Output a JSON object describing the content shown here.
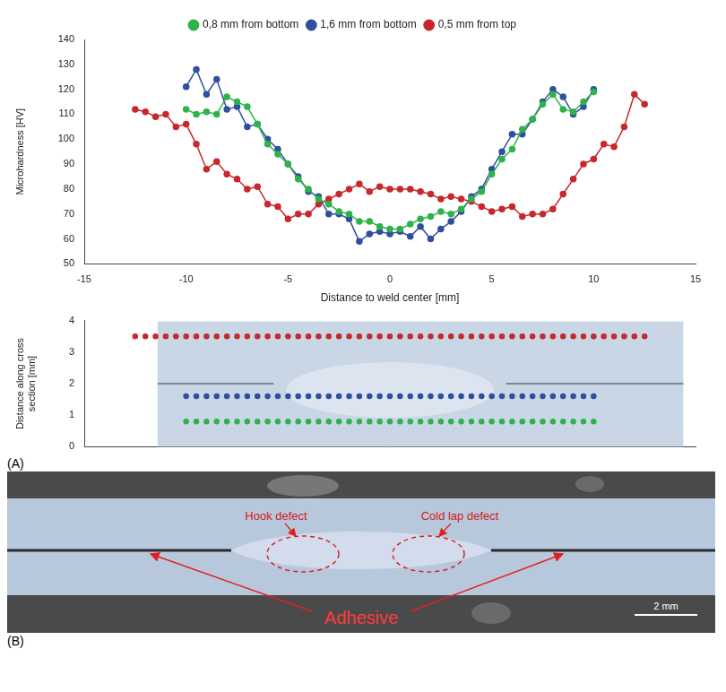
{
  "chart_data": [
    {
      "type": "line",
      "x_label": "Distance to weld center [mm]",
      "y_label": "Microhardness [HV]",
      "xlim": [
        -15,
        15
      ],
      "xticks": [
        -15,
        -10,
        -5,
        0,
        5,
        10,
        15
      ],
      "ylim": [
        50,
        140
      ],
      "yticks": [
        50,
        60,
        70,
        80,
        90,
        100,
        110,
        120,
        130,
        140
      ],
      "grid": false,
      "legend": "top",
      "series": [
        {
          "name": "0,8 mm from bottom",
          "color": "#2db34a",
          "marker": "circle",
          "line_style": "solid",
          "x": [
            -10,
            -9.5,
            -9,
            -8.5,
            -8,
            -7.5,
            -7,
            -6.5,
            -6,
            -5.5,
            -5,
            -4.5,
            -4,
            -3.5,
            -3,
            -2.5,
            -2,
            -1.5,
            -1,
            -0.5,
            0,
            0.5,
            1,
            1.5,
            2,
            2.5,
            3,
            3.5,
            4,
            4.5,
            5,
            5.5,
            6,
            6.5,
            7,
            7.5,
            8,
            8.5,
            9,
            9.5,
            10
          ],
          "values": [
            112,
            110,
            111,
            110,
            117,
            115,
            113,
            106,
            98,
            94,
            90,
            84,
            80,
            76,
            74,
            71,
            70,
            67,
            67,
            65,
            64,
            64,
            66,
            68,
            69,
            71,
            70,
            72,
            76,
            79,
            86,
            92,
            96,
            104,
            108,
            114,
            118,
            112,
            111,
            115,
            119
          ]
        },
        {
          "name": "1,6 mm from bottom",
          "color": "#2f4f9f",
          "marker": "circle",
          "line_style": "solid",
          "x": [
            -10,
            -9.5,
            -9,
            -8.5,
            -8,
            -7.5,
            -7,
            -6.5,
            -6,
            -5.5,
            -5,
            -4.5,
            -4,
            -3.5,
            -3,
            -2.5,
            -2,
            -1.5,
            -1,
            -0.5,
            0,
            0.5,
            1,
            1.5,
            2,
            2.5,
            3,
            3.5,
            4,
            4.5,
            5,
            5.5,
            6,
            6.5,
            7,
            7.5,
            8,
            8.5,
            9,
            9.5,
            10
          ],
          "values": [
            121,
            128,
            118,
            124,
            112,
            113,
            105,
            106,
            100,
            96,
            90,
            85,
            79,
            77,
            70,
            70,
            68,
            59,
            62,
            63,
            62,
            63,
            61,
            65,
            60,
            64,
            67,
            71,
            77,
            80,
            88,
            95,
            102,
            102,
            108,
            115,
            120,
            117,
            110,
            113,
            120
          ]
        },
        {
          "name": "0,5 mm from top",
          "color": "#c8282d",
          "marker": "circle",
          "line_style": "solid",
          "x": [
            -12.5,
            -12,
            -11.5,
            -11,
            -10.5,
            -10,
            -9.5,
            -9,
            -8.5,
            -8,
            -7.5,
            -7,
            -6.5,
            -6,
            -5.5,
            -5,
            -4.5,
            -4,
            -3.5,
            -3,
            -2.5,
            -2,
            -1.5,
            -1,
            -0.5,
            0,
            0.5,
            1,
            1.5,
            2,
            2.5,
            3,
            3.5,
            4,
            4.5,
            5,
            5.5,
            6,
            6.5,
            7,
            7.5,
            8,
            8.5,
            9,
            9.5,
            10,
            10.5,
            11,
            11.5,
            12,
            12.5
          ],
          "values": [
            112,
            111,
            109,
            110,
            105,
            106,
            98,
            88,
            91,
            86,
            84,
            80,
            81,
            74,
            73,
            68,
            70,
            70,
            74,
            76,
            78,
            80,
            82,
            79,
            81,
            80,
            80,
            80,
            79,
            78,
            76,
            77,
            76,
            75,
            73,
            71,
            72,
            73,
            69,
            70,
            70,
            72,
            78,
            84,
            90,
            92,
            98,
            97,
            105,
            118,
            114
          ]
        }
      ]
    },
    {
      "type": "scatter",
      "y_label": "Distance along cross section [mm]",
      "xlim": [
        -15,
        15
      ],
      "ylim": [
        0,
        4
      ],
      "yticks": [
        0,
        1,
        2,
        3,
        4
      ],
      "grid": false,
      "tick_labels": "y",
      "series": [
        {
          "color": "#2db34a",
          "marker": "circle",
          "line_style": "none",
          "x": [
            -10,
            -9.5,
            -9,
            -8.5,
            -8,
            -7.5,
            -7,
            -6.5,
            -6,
            -5.5,
            -5,
            -4.5,
            -4,
            -3.5,
            -3,
            -2.5,
            -2,
            -1.5,
            -1,
            -0.5,
            0,
            0.5,
            1,
            1.5,
            2,
            2.5,
            3,
            3.5,
            4,
            4.5,
            5,
            5.5,
            6,
            6.5,
            7,
            7.5,
            8,
            8.5,
            9,
            9.5,
            10
          ],
          "values": [
            0.8,
            0.8,
            0.8,
            0.8,
            0.8,
            0.8,
            0.8,
            0.8,
            0.8,
            0.8,
            0.8,
            0.8,
            0.8,
            0.8,
            0.8,
            0.8,
            0.8,
            0.8,
            0.8,
            0.8,
            0.8,
            0.8,
            0.8,
            0.8,
            0.8,
            0.8,
            0.8,
            0.8,
            0.8,
            0.8,
            0.8,
            0.8,
            0.8,
            0.8,
            0.8,
            0.8,
            0.8,
            0.8,
            0.8,
            0.8,
            0.8
          ]
        },
        {
          "color": "#2f4f9f",
          "marker": "circle",
          "line_style": "none",
          "x": [
            -10,
            -9.5,
            -9,
            -8.5,
            -8,
            -7.5,
            -7,
            -6.5,
            -6,
            -5.5,
            -5,
            -4.5,
            -4,
            -3.5,
            -3,
            -2.5,
            -2,
            -1.5,
            -1,
            -0.5,
            0,
            0.5,
            1,
            1.5,
            2,
            2.5,
            3,
            3.5,
            4,
            4.5,
            5,
            5.5,
            6,
            6.5,
            7,
            7.5,
            8,
            8.5,
            9,
            9.5,
            10
          ],
          "values": [
            1.6,
            1.6,
            1.6,
            1.6,
            1.6,
            1.6,
            1.6,
            1.6,
            1.6,
            1.6,
            1.6,
            1.6,
            1.6,
            1.6,
            1.6,
            1.6,
            1.6,
            1.6,
            1.6,
            1.6,
            1.6,
            1.6,
            1.6,
            1.6,
            1.6,
            1.6,
            1.6,
            1.6,
            1.6,
            1.6,
            1.6,
            1.6,
            1.6,
            1.6,
            1.6,
            1.6,
            1.6,
            1.6,
            1.6,
            1.6,
            1.6
          ]
        },
        {
          "color": "#c8282d",
          "marker": "circle",
          "line_style": "none",
          "x": [
            -12.5,
            -12,
            -11.5,
            -11,
            -10.5,
            -10,
            -9.5,
            -9,
            -8.5,
            -8,
            -7.5,
            -7,
            -6.5,
            -6,
            -5.5,
            -5,
            -4.5,
            -4,
            -3.5,
            -3,
            -2.5,
            -2,
            -1.5,
            -1,
            -0.5,
            0,
            0.5,
            1,
            1.5,
            2,
            2.5,
            3,
            3.5,
            4,
            4.5,
            5,
            5.5,
            6,
            6.5,
            7,
            7.5,
            8,
            8.5,
            9,
            9.5,
            10,
            10.5,
            11,
            11.5,
            12,
            12.5
          ],
          "values": [
            3.5,
            3.5,
            3.5,
            3.5,
            3.5,
            3.5,
            3.5,
            3.5,
            3.5,
            3.5,
            3.5,
            3.5,
            3.5,
            3.5,
            3.5,
            3.5,
            3.5,
            3.5,
            3.5,
            3.5,
            3.5,
            3.5,
            3.5,
            3.5,
            3.5,
            3.5,
            3.5,
            3.5,
            3.5,
            3.5,
            3.5,
            3.5,
            3.5,
            3.5,
            3.5,
            3.5,
            3.5,
            3.5,
            3.5,
            3.5,
            3.5,
            3.5,
            3.5,
            3.5,
            3.5,
            3.5,
            3.5,
            3.5,
            3.5,
            3.5,
            3.5
          ]
        }
      ]
    }
  ],
  "panel_labels": [
    "(A)",
    "(B)"
  ],
  "photo": {
    "defects": [
      "Hook defect",
      "Cold lap defect"
    ],
    "label": "Adhesive",
    "scale_bar": "2 mm"
  }
}
